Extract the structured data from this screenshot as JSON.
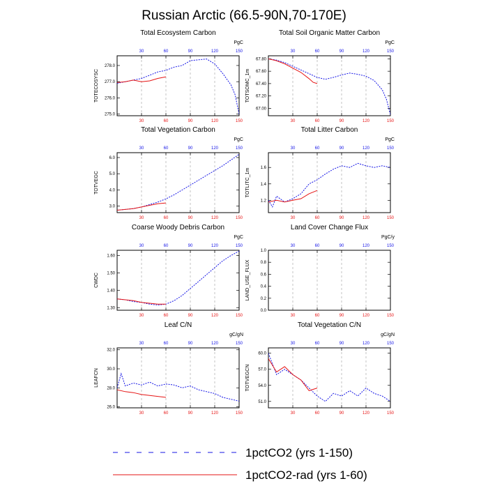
{
  "figure": {
    "title": "Russian Arctic (66.5-90N,70-170E)",
    "colors": {
      "series_150": "#1414e6",
      "series_60": "#e61414",
      "grid": "#aaaaaa",
      "axis": "#000000"
    }
  },
  "legend": {
    "items": [
      {
        "label": "1pctCO2 (yrs 1-150)",
        "style": "dashed-blue-red"
      },
      {
        "label": "1pctCO2-rad (yrs 1-60)",
        "style": "solid-red"
      }
    ]
  },
  "chart_data": [
    {
      "type": "line",
      "title": "Total Ecosystem Carbon",
      "ylabel": "TOTECOSYSC",
      "unit": "PgC",
      "xlim": [
        0,
        150
      ],
      "ylim": [
        274.9,
        278.6
      ],
      "xticks": [
        "30",
        "60",
        "90",
        "120",
        "150"
      ],
      "yticks": [
        "275.0",
        "276.0",
        "277.0",
        "278.0"
      ],
      "yticks_values": [
        275.0,
        276.0,
        277.0,
        278.0
      ],
      "grid": "vertical dashed",
      "series": [
        {
          "years": 150,
          "points": [
            [
              0,
              276.9
            ],
            [
              10,
              277.0
            ],
            [
              20,
              277.1
            ],
            [
              30,
              277.2
            ],
            [
              40,
              277.4
            ],
            [
              50,
              277.6
            ],
            [
              60,
              277.7
            ],
            [
              70,
              277.9
            ],
            [
              80,
              278.0
            ],
            [
              90,
              278.3
            ],
            [
              100,
              278.35
            ],
            [
              110,
              278.4
            ],
            [
              120,
              278.1
            ],
            [
              130,
              277.5
            ],
            [
              140,
              276.8
            ],
            [
              145,
              276.2
            ],
            [
              150,
              275.0
            ]
          ]
        },
        {
          "years": 60,
          "points": [
            [
              0,
              276.95
            ],
            [
              10,
              277.0
            ],
            [
              20,
              277.1
            ],
            [
              30,
              277.0
            ],
            [
              40,
              277.05
            ],
            [
              50,
              277.2
            ],
            [
              60,
              277.3
            ]
          ]
        }
      ]
    },
    {
      "type": "line",
      "title": "Total Soil Organic Matter Carbon",
      "ylabel": "TOTSOMC_1m",
      "unit": "PgC",
      "xlim": [
        0,
        150
      ],
      "ylim": [
        66.88,
        67.85
      ],
      "xticks": [
        "30",
        "60",
        "90",
        "120",
        "150"
      ],
      "yticks": [
        "67.00",
        "67.20",
        "67.40",
        "67.60",
        "67.80"
      ],
      "yticks_values": [
        67.0,
        67.2,
        67.4,
        67.6,
        67.8
      ],
      "grid": "vertical dashed",
      "series": [
        {
          "years": 150,
          "points": [
            [
              0,
              67.8
            ],
            [
              10,
              67.78
            ],
            [
              20,
              67.74
            ],
            [
              30,
              67.68
            ],
            [
              40,
              67.62
            ],
            [
              50,
              67.56
            ],
            [
              60,
              67.5
            ],
            [
              70,
              67.47
            ],
            [
              80,
              67.5
            ],
            [
              90,
              67.54
            ],
            [
              100,
              67.57
            ],
            [
              110,
              67.55
            ],
            [
              120,
              67.52
            ],
            [
              130,
              67.45
            ],
            [
              140,
              67.3
            ],
            [
              145,
              67.15
            ],
            [
              150,
              66.9
            ]
          ]
        },
        {
          "years": 60,
          "points": [
            [
              0,
              67.8
            ],
            [
              10,
              67.77
            ],
            [
              20,
              67.72
            ],
            [
              30,
              67.65
            ],
            [
              40,
              67.58
            ],
            [
              50,
              67.48
            ],
            [
              55,
              67.42
            ],
            [
              60,
              67.4
            ]
          ]
        }
      ]
    },
    {
      "type": "line",
      "title": "Total Vegetation Carbon",
      "ylabel": "TOTVEGC",
      "unit": "PgC",
      "xlim": [
        0,
        150
      ],
      "ylim": [
        2.6,
        6.3
      ],
      "xticks": [
        "30",
        "60",
        "90",
        "120",
        "150"
      ],
      "yticks": [
        "3.0",
        "4.0",
        "5.0",
        "6.0"
      ],
      "yticks_values": [
        3.0,
        4.0,
        5.0,
        6.0
      ],
      "grid": "vertical dashed",
      "series": [
        {
          "years": 150,
          "points": [
            [
              0,
              2.75
            ],
            [
              10,
              2.8
            ],
            [
              20,
              2.85
            ],
            [
              30,
              2.95
            ],
            [
              40,
              3.1
            ],
            [
              50,
              3.25
            ],
            [
              60,
              3.45
            ],
            [
              70,
              3.7
            ],
            [
              80,
              4.0
            ],
            [
              90,
              4.3
            ],
            [
              100,
              4.6
            ],
            [
              110,
              4.9
            ],
            [
              120,
              5.2
            ],
            [
              130,
              5.5
            ],
            [
              140,
              5.85
            ],
            [
              150,
              6.2
            ]
          ]
        },
        {
          "years": 60,
          "points": [
            [
              0,
              2.75
            ],
            [
              10,
              2.8
            ],
            [
              20,
              2.85
            ],
            [
              30,
              2.95
            ],
            [
              40,
              3.05
            ],
            [
              50,
              3.15
            ],
            [
              60,
              3.2
            ]
          ]
        }
      ]
    },
    {
      "type": "line",
      "title": "Total Litter Carbon",
      "ylabel": "TOTLITC_1m",
      "unit": "PgC",
      "xlim": [
        0,
        150
      ],
      "ylim": [
        1.05,
        1.78
      ],
      "xticks": [
        "30",
        "60",
        "90",
        "120",
        "150"
      ],
      "yticks": [
        "1.2",
        "1.4",
        "1.6"
      ],
      "yticks_values": [
        1.2,
        1.4,
        1.6
      ],
      "grid": "vertical dashed",
      "series": [
        {
          "years": 150,
          "points": [
            [
              0,
              1.2
            ],
            [
              5,
              1.12
            ],
            [
              10,
              1.25
            ],
            [
              20,
              1.18
            ],
            [
              30,
              1.22
            ],
            [
              40,
              1.28
            ],
            [
              50,
              1.4
            ],
            [
              60,
              1.45
            ],
            [
              70,
              1.52
            ],
            [
              80,
              1.58
            ],
            [
              90,
              1.62
            ],
            [
              100,
              1.6
            ],
            [
              110,
              1.65
            ],
            [
              120,
              1.62
            ],
            [
              130,
              1.6
            ],
            [
              140,
              1.62
            ],
            [
              150,
              1.6
            ]
          ]
        },
        {
          "years": 60,
          "points": [
            [
              0,
              1.18
            ],
            [
              10,
              1.2
            ],
            [
              20,
              1.18
            ],
            [
              30,
              1.2
            ],
            [
              40,
              1.22
            ],
            [
              50,
              1.28
            ],
            [
              60,
              1.32
            ]
          ]
        }
      ]
    },
    {
      "type": "line",
      "title": "Coarse Woody Debris Carbon",
      "ylabel": "CWDC",
      "unit": "PgC",
      "xlim": [
        0,
        150
      ],
      "ylim": [
        1.285,
        1.63
      ],
      "xticks": [
        "30",
        "60",
        "90",
        "120",
        "150"
      ],
      "yticks": [
        "1.30",
        "1.40",
        "1.50",
        "1.60"
      ],
      "yticks_values": [
        1.3,
        1.4,
        1.5,
        1.6
      ],
      "grid": "vertical dashed",
      "series": [
        {
          "years": 150,
          "points": [
            [
              0,
              1.35
            ],
            [
              10,
              1.345
            ],
            [
              20,
              1.335
            ],
            [
              30,
              1.33
            ],
            [
              40,
              1.32
            ],
            [
              50,
              1.315
            ],
            [
              60,
              1.32
            ],
            [
              70,
              1.34
            ],
            [
              80,
              1.37
            ],
            [
              90,
              1.41
            ],
            [
              100,
              1.45
            ],
            [
              110,
              1.49
            ],
            [
              120,
              1.53
            ],
            [
              130,
              1.57
            ],
            [
              140,
              1.6
            ],
            [
              150,
              1.625
            ]
          ]
        },
        {
          "years": 60,
          "points": [
            [
              0,
              1.35
            ],
            [
              10,
              1.345
            ],
            [
              20,
              1.34
            ],
            [
              30,
              1.33
            ],
            [
              40,
              1.325
            ],
            [
              50,
              1.32
            ],
            [
              60,
              1.32
            ]
          ]
        }
      ]
    },
    {
      "type": "line",
      "title": "Land Cover Change Flux",
      "ylabel": "LAND_USE_FLUX",
      "unit": "PgC/y",
      "xlim": [
        0,
        150
      ],
      "ylim": [
        0.0,
        1.0
      ],
      "xticks": [
        "30",
        "60",
        "90",
        "120",
        "150"
      ],
      "yticks": [
        "0.0",
        "0.2",
        "0.4",
        "0.6",
        "0.8",
        "1.0"
      ],
      "yticks_values": [
        0.0,
        0.2,
        0.4,
        0.6,
        0.8,
        1.0
      ],
      "grid": "vertical dashed",
      "series": []
    },
    {
      "type": "line",
      "title": "Leaf C/N",
      "ylabel": "LEAFCN",
      "unit": "gC/gN",
      "xlim": [
        0,
        150
      ],
      "ylim": [
        25.9,
        32.2
      ],
      "xticks": [
        "30",
        "60",
        "90",
        "120",
        "150"
      ],
      "yticks": [
        "26.0",
        "28.0",
        "30.0",
        "32.0"
      ],
      "yticks_values": [
        26.0,
        28.0,
        30.0,
        32.0
      ],
      "grid": "vertical dashed",
      "series": [
        {
          "years": 150,
          "points": [
            [
              0,
              28.0
            ],
            [
              5,
              29.5
            ],
            [
              10,
              28.2
            ],
            [
              20,
              28.5
            ],
            [
              30,
              28.3
            ],
            [
              40,
              28.6
            ],
            [
              50,
              28.2
            ],
            [
              60,
              28.4
            ],
            [
              70,
              28.3
            ],
            [
              80,
              28.0
            ],
            [
              90,
              28.2
            ],
            [
              100,
              27.8
            ],
            [
              110,
              27.6
            ],
            [
              120,
              27.4
            ],
            [
              130,
              27.0
            ],
            [
              140,
              26.8
            ],
            [
              150,
              26.6
            ]
          ]
        },
        {
          "years": 60,
          "points": [
            [
              0,
              27.8
            ],
            [
              10,
              27.6
            ],
            [
              20,
              27.5
            ],
            [
              30,
              27.3
            ],
            [
              40,
              27.2
            ],
            [
              50,
              27.1
            ],
            [
              60,
              27.0
            ]
          ]
        }
      ]
    },
    {
      "type": "line",
      "title": "Total Vegetation C/N",
      "ylabel": "TOTVEGCN",
      "unit": "gC/gN",
      "xlim": [
        0,
        150
      ],
      "ylim": [
        49.8,
        61.0
      ],
      "xticks": [
        "30",
        "60",
        "90",
        "120",
        "150"
      ],
      "yticks": [
        "51.0",
        "54.0",
        "57.0",
        "60.0"
      ],
      "yticks_values": [
        51.0,
        54.0,
        57.0,
        60.0
      ],
      "grid": "vertical dashed",
      "series": [
        {
          "years": 150,
          "points": [
            [
              0,
              60.0
            ],
            [
              5,
              58.0
            ],
            [
              10,
              56.0
            ],
            [
              20,
              57.0
            ],
            [
              30,
              56.0
            ],
            [
              40,
              55.0
            ],
            [
              50,
              53.5
            ],
            [
              60,
              52.0
            ],
            [
              70,
              51.0
            ],
            [
              80,
              52.5
            ],
            [
              90,
              52.0
            ],
            [
              100,
              53.0
            ],
            [
              110,
              52.0
            ],
            [
              120,
              53.5
            ],
            [
              130,
              52.5
            ],
            [
              140,
              52.0
            ],
            [
              150,
              51.0
            ]
          ]
        },
        {
          "years": 60,
          "points": [
            [
              0,
              59.0
            ],
            [
              10,
              56.5
            ],
            [
              20,
              57.5
            ],
            [
              30,
              56.0
            ],
            [
              40,
              55.0
            ],
            [
              50,
              53.0
            ],
            [
              60,
              53.5
            ]
          ]
        }
      ]
    }
  ]
}
